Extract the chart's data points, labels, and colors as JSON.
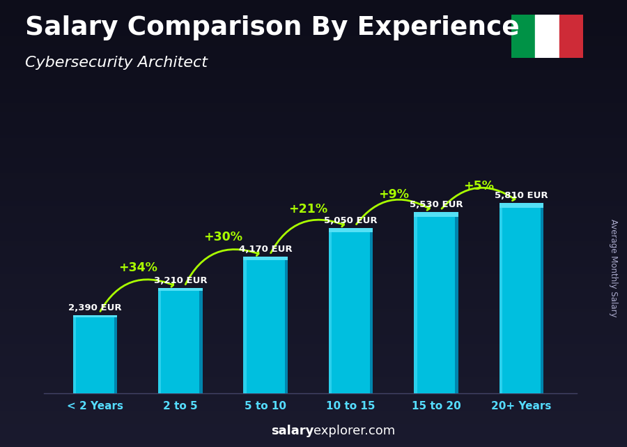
{
  "title": "Salary Comparison By Experience",
  "subtitle": "Cybersecurity Architect",
  "ylabel": "Average Monthly Salary",
  "categories": [
    "< 2 Years",
    "2 to 5",
    "5 to 10",
    "10 to 15",
    "15 to 20",
    "20+ Years"
  ],
  "values": [
    2390,
    3210,
    4170,
    5050,
    5530,
    5810
  ],
  "value_labels": [
    "2,390 EUR",
    "3,210 EUR",
    "4,170 EUR",
    "5,050 EUR",
    "5,530 EUR",
    "5,810 EUR"
  ],
  "pct_labels": [
    "+34%",
    "+30%",
    "+21%",
    "+9%",
    "+5%"
  ],
  "bar_color_main": "#00bfdf",
  "bar_color_left": "#33d4ef",
  "bar_color_right": "#007fa8",
  "bar_color_top": "#55e0f5",
  "background_top": "#0d0d1a",
  "background_bot": "#1a1a2e",
  "title_color": "#ffffff",
  "subtitle_color": "#ffffff",
  "value_label_color": "#ffffff",
  "pct_color": "#aaff00",
  "arrow_color": "#aaff00",
  "xtick_color": "#55ddff",
  "watermark_bold": "salary",
  "watermark_normal": "explorer.com",
  "flag_green": "#009246",
  "flag_white": "#ffffff",
  "flag_red": "#ce2b37",
  "ylim": [
    0,
    7500
  ],
  "bar_width": 0.52
}
